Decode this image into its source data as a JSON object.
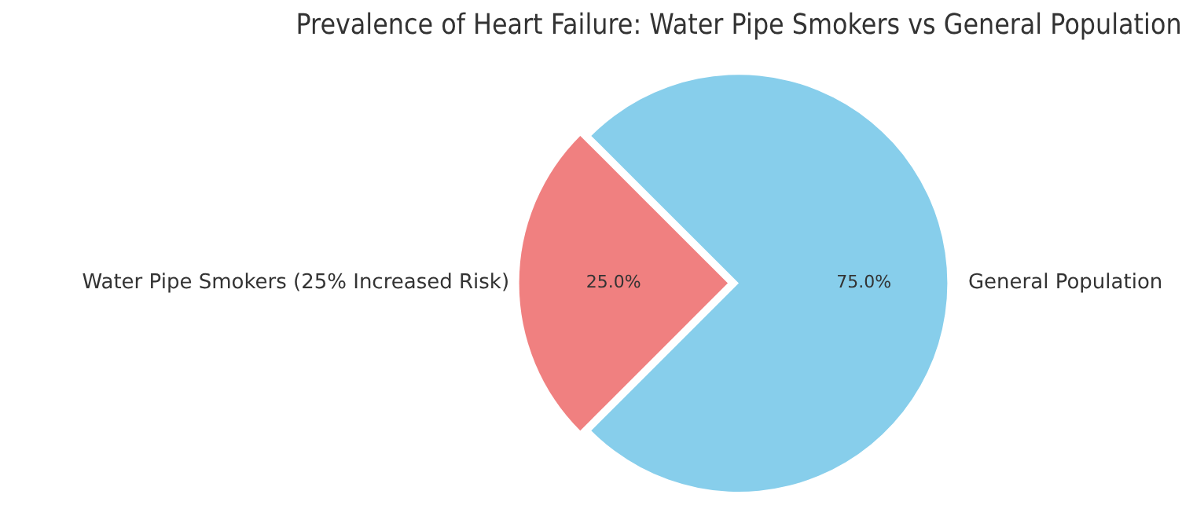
{
  "chart_data": {
    "type": "pie",
    "title": "Prevalence of Heart Failure: Water Pipe Smokers vs General Population",
    "categories": [
      "Water Pipe Smokers (25% Increased Risk)",
      "General Population"
    ],
    "values": [
      25,
      75
    ],
    "colors": [
      "#f08080",
      "#87ceeb"
    ],
    "value_labels": [
      "25.0%",
      "75.0%"
    ],
    "legend": false
  }
}
